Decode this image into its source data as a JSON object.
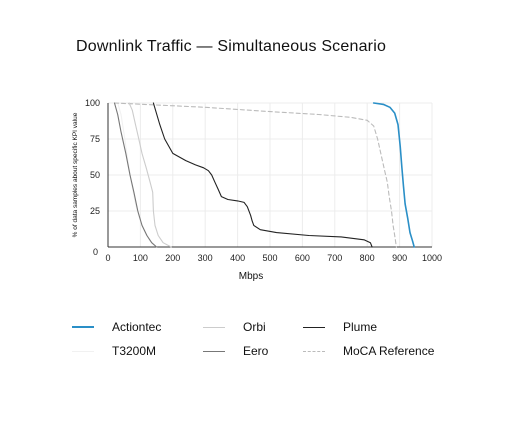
{
  "chart_data": {
    "type": "line",
    "title": "Downlink Traffic — Simultaneous Scenario",
    "xlabel": "Mbps",
    "ylabel": "% of data samples about specific KPI value",
    "xlim": [
      0,
      1000
    ],
    "ylim": [
      0,
      100
    ],
    "x_ticks": [
      "0",
      "100",
      "200",
      "300",
      "400",
      "500",
      "600",
      "700",
      "800",
      "900",
      "1000"
    ],
    "y_ticks": [
      "100",
      "75",
      "50",
      "25",
      "0"
    ],
    "grid": true,
    "legend_position": "bottom",
    "series": [
      {
        "name": "Actiontec",
        "color": "#2a8fc7",
        "dash": "solid",
        "points": [
          [
            820,
            100
          ],
          [
            850,
            99
          ],
          [
            870,
            97
          ],
          [
            885,
            93
          ],
          [
            895,
            85
          ],
          [
            902,
            70
          ],
          [
            907,
            55
          ],
          [
            912,
            42
          ],
          [
            917,
            30
          ],
          [
            925,
            20
          ],
          [
            932,
            10
          ],
          [
            940,
            4
          ],
          [
            945,
            0
          ]
        ]
      },
      {
        "name": "T3200M",
        "color": "#f1f1f1",
        "dash": "solid",
        "points": [
          [
            30,
            100
          ],
          [
            40,
            92
          ],
          [
            50,
            78
          ],
          [
            60,
            62
          ],
          [
            72,
            45
          ],
          [
            85,
            30
          ],
          [
            100,
            18
          ],
          [
            115,
            10
          ],
          [
            130,
            4
          ],
          [
            150,
            0
          ]
        ]
      },
      {
        "name": "Orbi",
        "color": "#cccccc",
        "dash": "solid",
        "points": [
          [
            65,
            100
          ],
          [
            75,
            95
          ],
          [
            85,
            85
          ],
          [
            95,
            75
          ],
          [
            105,
            65
          ],
          [
            118,
            55
          ],
          [
            130,
            45
          ],
          [
            138,
            38
          ],
          [
            140,
            25
          ],
          [
            145,
            15
          ],
          [
            155,
            8
          ],
          [
            170,
            3
          ],
          [
            195,
            0
          ]
        ]
      },
      {
        "name": "Eero",
        "color": "#777777",
        "dash": "solid",
        "points": [
          [
            20,
            100
          ],
          [
            30,
            92
          ],
          [
            40,
            80
          ],
          [
            55,
            65
          ],
          [
            68,
            50
          ],
          [
            80,
            38
          ],
          [
            92,
            25
          ],
          [
            105,
            15
          ],
          [
            120,
            8
          ],
          [
            135,
            3
          ],
          [
            150,
            0
          ]
        ]
      },
      {
        "name": "Plume",
        "color": "#222222",
        "dash": "solid",
        "points": [
          [
            140,
            100
          ],
          [
            160,
            85
          ],
          [
            175,
            75
          ],
          [
            200,
            65
          ],
          [
            240,
            60
          ],
          [
            270,
            57
          ],
          [
            295,
            55
          ],
          [
            310,
            53
          ],
          [
            320,
            50
          ],
          [
            330,
            45
          ],
          [
            340,
            40
          ],
          [
            350,
            35
          ],
          [
            370,
            33
          ],
          [
            400,
            32
          ],
          [
            420,
            31
          ],
          [
            430,
            28
          ],
          [
            440,
            22
          ],
          [
            445,
            18
          ],
          [
            450,
            15
          ],
          [
            470,
            12
          ],
          [
            520,
            10
          ],
          [
            620,
            8
          ],
          [
            720,
            7
          ],
          [
            790,
            5
          ],
          [
            810,
            3
          ],
          [
            815,
            0
          ]
        ]
      },
      {
        "name": "MoCA Reference",
        "color": "#bbbbbb",
        "dash": "dashed",
        "points": [
          [
            20,
            100
          ],
          [
            300,
            97
          ],
          [
            500,
            94
          ],
          [
            650,
            92
          ],
          [
            750,
            90
          ],
          [
            800,
            88
          ],
          [
            820,
            84
          ],
          [
            832,
            75
          ],
          [
            842,
            65
          ],
          [
            852,
            55
          ],
          [
            862,
            45
          ],
          [
            868,
            35
          ],
          [
            875,
            25
          ],
          [
            880,
            15
          ],
          [
            885,
            8
          ],
          [
            890,
            0
          ]
        ]
      }
    ]
  },
  "legend": {
    "items": [
      {
        "label": "Actiontec",
        "color": "#2a8fc7",
        "dash": "solid"
      },
      {
        "label": "Orbi",
        "color": "#cccccc",
        "dash": "solid"
      },
      {
        "label": "Plume",
        "color": "#222222",
        "dash": "solid"
      },
      {
        "label": "T3200M",
        "color": "#f1f1f1",
        "dash": "solid"
      },
      {
        "label": "Eero",
        "color": "#777777",
        "dash": "solid"
      },
      {
        "label": "MoCA Reference",
        "color": "#bbbbbb",
        "dash": "dashed"
      }
    ]
  }
}
